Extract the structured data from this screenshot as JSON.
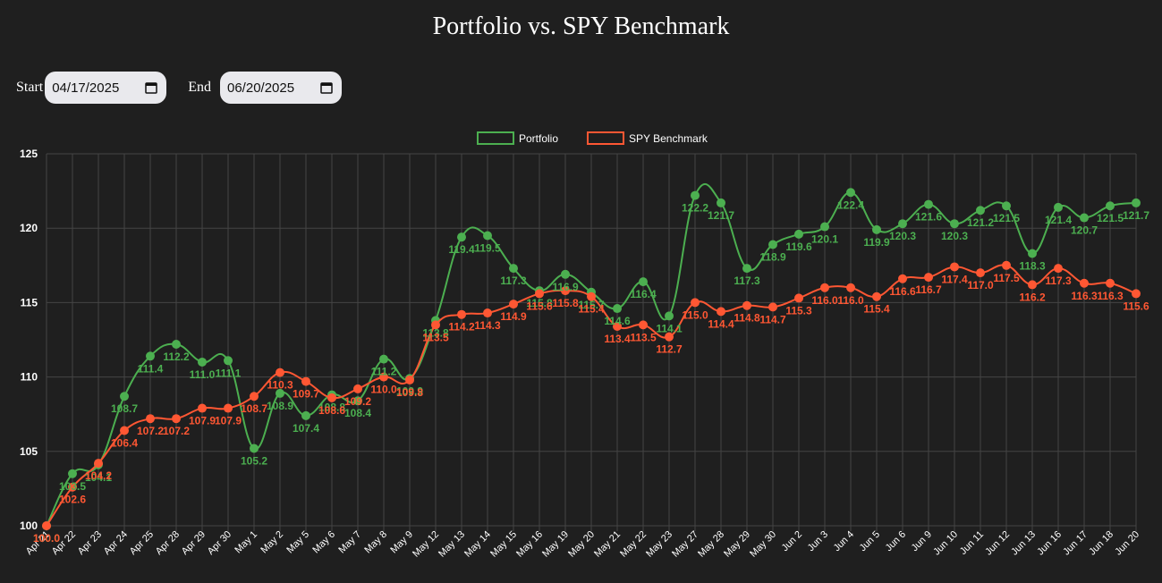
{
  "title": "Portfolio vs. SPY Benchmark",
  "controls": {
    "start_label": "Start",
    "start_value": "04/17/2025",
    "end_label": "End",
    "end_value": "06/20/2025"
  },
  "chart_data": {
    "type": "line",
    "categories": [
      "Apr 21",
      "Apr 22",
      "Apr 23",
      "Apr 24",
      "Apr 25",
      "Apr 28",
      "Apr 29",
      "Apr 30",
      "May 1",
      "May 2",
      "May 5",
      "May 6",
      "May 7",
      "May 8",
      "May 9",
      "May 12",
      "May 13",
      "May 14",
      "May 15",
      "May 16",
      "May 19",
      "May 20",
      "May 21",
      "May 22",
      "May 23",
      "May 27",
      "May 28",
      "May 29",
      "May 30",
      "Jun 2",
      "Jun 3",
      "Jun 4",
      "Jun 5",
      "Jun 6",
      "Jun 9",
      "Jun 10",
      "Jun 11",
      "Jun 12",
      "Jun 13",
      "Jun 16",
      "Jun 17",
      "Jun 18",
      "Jun 20"
    ],
    "series": [
      {
        "name": "Portfolio",
        "color": "#4caf50",
        "values": [
          100.0,
          103.5,
          104.1,
          108.7,
          111.4,
          112.2,
          111.0,
          111.1,
          105.2,
          108.9,
          107.4,
          108.8,
          108.4,
          111.2,
          109.9,
          113.8,
          119.4,
          119.5,
          117.3,
          115.8,
          116.9,
          115.7,
          114.6,
          116.4,
          114.1,
          122.2,
          121.7,
          117.3,
          118.9,
          119.6,
          120.1,
          122.4,
          119.9,
          120.3,
          121.6,
          120.3,
          121.2,
          121.5,
          118.3,
          121.4,
          120.7,
          121.5,
          121.7
        ]
      },
      {
        "name": "SPY Benchmark",
        "color": "#ff5733",
        "values": [
          100.0,
          102.6,
          104.2,
          106.4,
          107.2,
          107.2,
          107.9,
          107.9,
          108.7,
          110.3,
          109.7,
          108.6,
          109.2,
          110.0,
          109.8,
          113.5,
          114.2,
          114.3,
          114.9,
          115.6,
          115.8,
          115.4,
          113.4,
          113.5,
          112.7,
          115.0,
          114.4,
          114.8,
          114.7,
          115.3,
          116.0,
          116.0,
          115.4,
          116.6,
          116.7,
          117.4,
          117.0,
          117.5,
          116.2,
          117.3,
          116.3,
          116.3,
          115.6
        ]
      }
    ],
    "y_ticks": [
      "100",
      "105",
      "110",
      "115",
      "120",
      "125"
    ],
    "ylim": [
      100,
      125
    ],
    "legend_position": "top-center",
    "grid": true
  }
}
